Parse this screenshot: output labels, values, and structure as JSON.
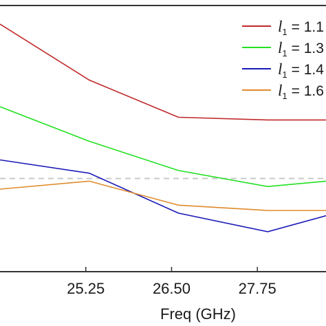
{
  "chart_data": {
    "type": "line",
    "xlabel": "Freq (GHz)",
    "ylabel": "",
    "x_ticks": [
      25.25,
      26.5,
      27.75
    ],
    "x_tick_labels": [
      "25.25",
      "26.50",
      "27.75"
    ],
    "xlim": [
      24.0,
      28.75
    ],
    "ylim": [
      0,
      100
    ],
    "x": [
      24.0,
      25.3,
      26.6,
      27.9,
      28.75
    ],
    "reference_line": {
      "y": 35,
      "style": "dashed",
      "color": "#c8c8c8"
    },
    "series": [
      {
        "name": "l1 = 1.1",
        "legend_var": "l",
        "legend_sub": "1",
        "legend_value": "= 1.1",
        "color": "#c0282a",
        "values": [
          93,
          72,
          58,
          57,
          57
        ]
      },
      {
        "name": "l1 = 1.3",
        "legend_var": "l",
        "legend_sub": "1",
        "legend_value": "= 1.3",
        "color": "#22e022",
        "values": [
          62,
          49,
          38,
          32,
          34
        ]
      },
      {
        "name": "l1 = 1.4",
        "legend_var": "l",
        "legend_sub": "1",
        "legend_value": "= 1.4",
        "color": "#1818b8",
        "values": [
          42,
          37,
          22,
          15,
          21
        ]
      },
      {
        "name": "l1 = 1.6",
        "legend_var": "l",
        "legend_sub": "1",
        "legend_value": "= 1.6",
        "color": "#e08a2c",
        "values": [
          31,
          34,
          25,
          23,
          23
        ]
      }
    ]
  }
}
